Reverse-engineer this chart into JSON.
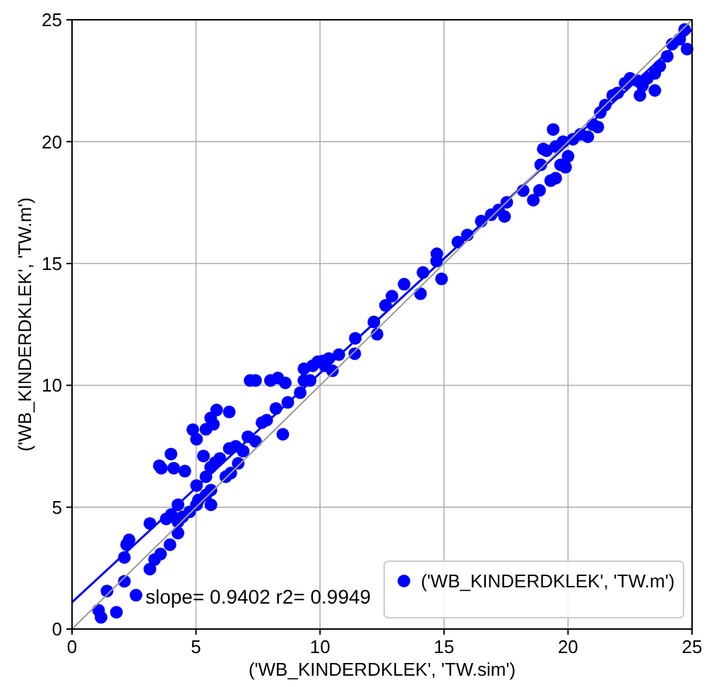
{
  "chart_data": {
    "type": "scatter",
    "xlabel": "('WB_KINDERDKLEK', 'TW.sim')",
    "ylabel": "('WB_KINDERDKLEK', 'TW.m')",
    "xlim": [
      0,
      25
    ],
    "ylim": [
      0,
      25
    ],
    "xticks": [
      0,
      5,
      10,
      15,
      20,
      25
    ],
    "yticks": [
      0,
      5,
      10,
      15,
      20,
      25
    ],
    "grid": true,
    "legend": "bottom right",
    "marker": "circle",
    "annotations": [
      "slope= 0.9402 r2= 0.9949"
    ],
    "series": [
      {
        "name": "('WB_KINDERDKLEK', 'TW.m')",
        "color": "#0000ff",
        "x": [
          1.17,
          1.07,
          1.79,
          1.41,
          2.58,
          2.11,
          2.11,
          2.3,
          2.2,
          3.14,
          3.33,
          3.57,
          3.95,
          3.14,
          3.8,
          4.27,
          4.27,
          3.52,
          3.6,
          3.99,
          4.1,
          4.55,
          4.87,
          5.02,
          5.59,
          5.83,
          6.34,
          5.7,
          5.4,
          5.3,
          5.02,
          5.4,
          5.4,
          5.59,
          5.77,
          5.96,
          6.34,
          6.6,
          6.9,
          6.7,
          6.4,
          6.2,
          5.6,
          5.1,
          4.74,
          4.45,
          4.0,
          4.27,
          5.02,
          5.6,
          7.09,
          7.4,
          7.66,
          7.85,
          8.22,
          8.7,
          8.5,
          9.2,
          7.18,
          7.4,
          8.0,
          8.3,
          8.6,
          9.35,
          9.7,
          10.1,
          10.35,
          9.35,
          9.6,
          9.91,
          10.2,
          10.5,
          10.76,
          11.42,
          11.4,
          12.17,
          12.3,
          12.64,
          12.9,
          13.39,
          14.05,
          14.15,
          14.71,
          14.9,
          14.7,
          15.56,
          15.94,
          16.5,
          16.9,
          17.44,
          17.2,
          17.53,
          18.19,
          18.6,
          18.85,
          19.3,
          19.5,
          19.7,
          19.9,
          18.9,
          19.13,
          19.0,
          19.5,
          19.8,
          20.2,
          20.5,
          20.8,
          21.0,
          21.3,
          21.5,
          21.8,
          22.0,
          22.3,
          22.5,
          22.8,
          23.0,
          23.2,
          23.5,
          23.7,
          24.0,
          24.2,
          24.5,
          24.7,
          24.8,
          22.9,
          23.5,
          21.2,
          20.0,
          19.4
        ],
        "values": [
          0.48,
          0.77,
          0.69,
          1.56,
          1.39,
          1.96,
          2.94,
          3.66,
          3.46,
          2.46,
          2.85,
          3.08,
          3.46,
          4.33,
          4.52,
          3.94,
          4.4,
          6.7,
          6.6,
          7.18,
          6.6,
          6.48,
          8.18,
          7.79,
          8.66,
          8.99,
          8.91,
          8.4,
          8.2,
          7.1,
          5.89,
          5.5,
          6.25,
          6.64,
          6.83,
          7.0,
          7.41,
          7.5,
          7.3,
          6.8,
          6.4,
          6.25,
          5.7,
          5.3,
          4.81,
          4.6,
          4.7,
          5.1,
          5.1,
          5.1,
          7.89,
          7.7,
          8.47,
          8.57,
          9.05,
          9.3,
          7.99,
          9.7,
          10.2,
          10.2,
          10.2,
          10.3,
          10.1,
          10.68,
          10.8,
          11.0,
          11.1,
          10.2,
          10.2,
          10.97,
          10.8,
          10.6,
          11.26,
          11.93,
          11.3,
          12.6,
          12.1,
          13.28,
          13.66,
          14.15,
          13.76,
          14.63,
          15.4,
          14.37,
          15.1,
          15.88,
          16.17,
          16.74,
          17.0,
          16.93,
          17.2,
          17.51,
          17.99,
          17.6,
          18.0,
          18.4,
          18.5,
          19.05,
          18.95,
          19.05,
          19.63,
          19.7,
          19.8,
          20.0,
          20.1,
          20.3,
          20.2,
          20.7,
          21.2,
          21.5,
          21.9,
          22.0,
          22.4,
          22.6,
          22.5,
          22.3,
          22.6,
          22.8,
          23.1,
          23.5,
          24.0,
          24.2,
          24.6,
          23.8,
          21.9,
          22.1,
          20.6,
          19.4,
          20.5
        ]
      },
      {
        "type": "line",
        "marker": "none",
        "color": "#0000ff",
        "x": [
          0,
          25
        ],
        "values": [
          1.1,
          24.6
        ]
      },
      {
        "type": "line",
        "marker": "none",
        "color": "#999999",
        "x": [
          0,
          25
        ],
        "values": [
          0,
          25
        ]
      }
    ]
  }
}
